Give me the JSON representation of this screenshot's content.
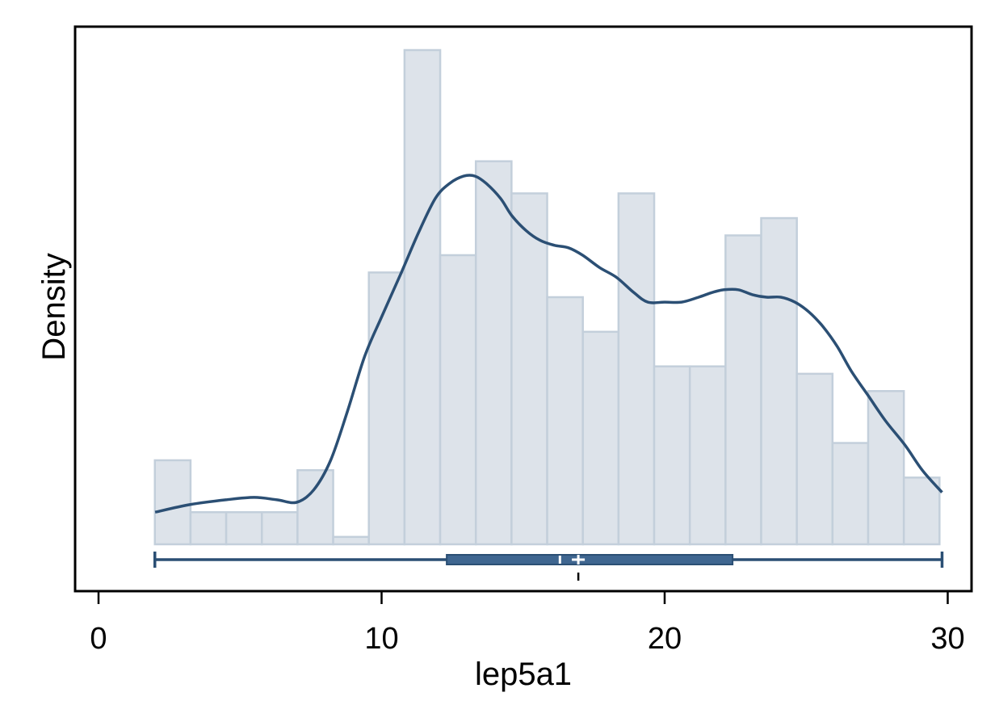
{
  "chart_data": {
    "type": "bar",
    "title": "",
    "xlabel": "lep5a1",
    "ylabel": "Density",
    "xlim": [
      0,
      30
    ],
    "xticks": [
      0,
      10,
      20,
      30
    ],
    "grid": false,
    "histogram": {
      "bin_width": 1.26,
      "bin_edges": [
        1.99,
        3.25,
        4.51,
        5.77,
        7.03,
        8.29,
        9.55,
        10.81,
        12.07,
        13.33,
        14.59,
        15.85,
        17.11,
        18.37,
        19.63,
        20.89,
        22.15,
        23.41,
        24.67,
        25.93,
        27.19,
        28.45,
        29.71
      ],
      "relative_heights": [
        0.17,
        0.065,
        0.065,
        0.065,
        0.15,
        0.015,
        0.55,
        1.0,
        0.585,
        0.775,
        0.71,
        0.5,
        0.43,
        0.71,
        0.36,
        0.36,
        0.625,
        0.66,
        0.345,
        0.205,
        0.31,
        0.135
      ]
    },
    "density_curve": {
      "x": [
        2.0,
        3.2,
        4.5,
        5.5,
        6.3,
        7.0,
        7.6,
        8.2,
        8.8,
        9.4,
        10.0,
        10.7,
        11.3,
        11.9,
        12.4,
        12.9,
        13.3,
        13.7,
        14.2,
        14.6,
        15.1,
        15.6,
        16.1,
        16.6,
        17.1,
        17.7,
        18.3,
        18.9,
        19.4,
        20.0,
        20.6,
        21.2,
        21.7,
        22.1,
        22.6,
        23.1,
        23.6,
        24.1,
        24.6,
        25.1,
        25.6,
        26.1,
        26.6,
        27.2,
        27.8,
        28.5,
        29.1,
        29.8
      ],
      "y": [
        0.065,
        0.08,
        0.09,
        0.095,
        0.09,
        0.085,
        0.11,
        0.17,
        0.27,
        0.38,
        0.46,
        0.55,
        0.63,
        0.7,
        0.73,
        0.745,
        0.745,
        0.73,
        0.7,
        0.665,
        0.635,
        0.615,
        0.605,
        0.6,
        0.585,
        0.56,
        0.54,
        0.51,
        0.49,
        0.49,
        0.49,
        0.5,
        0.51,
        0.515,
        0.515,
        0.505,
        0.5,
        0.5,
        0.49,
        0.47,
        0.44,
        0.4,
        0.35,
        0.3,
        0.25,
        0.2,
        0.15,
        0.105
      ]
    },
    "boxplot": {
      "min": 1.99,
      "q1": 12.3,
      "median": 16.3,
      "mean": 16.95,
      "q3": 22.4,
      "max": 29.8
    }
  }
}
